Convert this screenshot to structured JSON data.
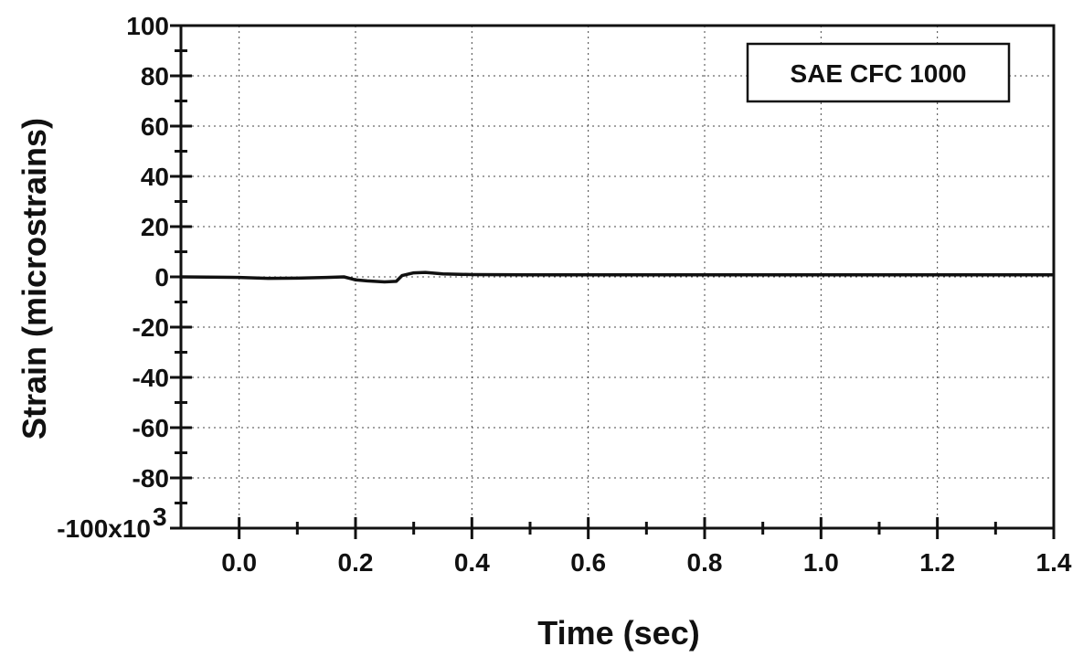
{
  "chart_data": {
    "type": "line",
    "xlabel": "Time  (sec)",
    "ylabel": "Strain (microstrains)",
    "xlim": [
      -0.1,
      1.4
    ],
    "ylim": [
      -100,
      100
    ],
    "x_ticks": [
      0.0,
      0.2,
      0.4,
      0.6,
      0.8,
      1.0,
      1.2,
      1.4
    ],
    "x_tick_labels": [
      "0.0",
      "0.2",
      "0.4",
      "0.6",
      "0.8",
      "1.0",
      "1.2",
      "1.4"
    ],
    "y_ticks": [
      100,
      80,
      60,
      40,
      20,
      0,
      -20,
      -40,
      -60,
      -80,
      -100
    ],
    "y_tick_labels": [
      "100",
      "80",
      "60",
      "40",
      "20",
      "0",
      "-20",
      "-40",
      "-60",
      "-80",
      "-100x10"
    ],
    "y_bottom_exponent": "3",
    "grid": true,
    "annotation": "SAE CFC 1000",
    "annotation_position": "top-right",
    "series": [
      {
        "x": [
          -0.1,
          0.0,
          0.05,
          0.1,
          0.15,
          0.18,
          0.2,
          0.22,
          0.25,
          0.27,
          0.28,
          0.3,
          0.32,
          0.35,
          0.4,
          0.5,
          0.7,
          1.0,
          1.2,
          1.4
        ],
        "values": [
          0,
          -0.2,
          -0.6,
          -0.5,
          -0.2,
          0,
          -1.2,
          -1.6,
          -2.0,
          -1.8,
          0.5,
          1.6,
          1.8,
          1.2,
          0.9,
          0.8,
          0.8,
          0.8,
          0.8,
          0.8
        ]
      }
    ]
  }
}
